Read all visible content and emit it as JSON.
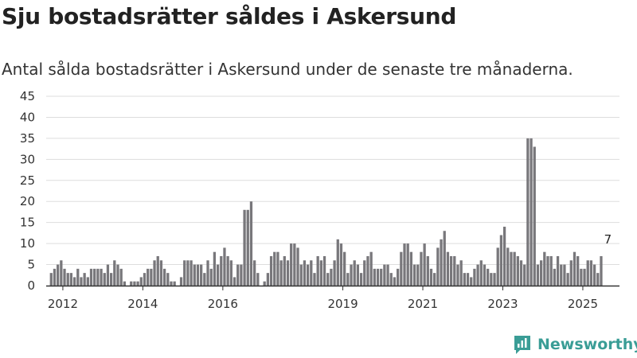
{
  "title": "Sju bostadsrätter såldes i Askersund",
  "subtitle": "Antal sålda bostadsrätter i Askersund under de senaste tre månaderna.",
  "brand": {
    "name": "Newsworthy",
    "icon": "newsworthy-logo-icon"
  },
  "colors": {
    "bar": "#78777b",
    "highlight": "#1f9e97",
    "grid": "#dddddd",
    "axis": "#333333",
    "brand": "#3a9d96"
  },
  "chart_data": {
    "type": "bar",
    "xlabel": "",
    "ylabel": "",
    "ylim": [
      0,
      45
    ],
    "y_ticks": [
      0,
      5,
      10,
      15,
      20,
      25,
      30,
      35,
      40,
      45
    ],
    "x_ticks": [
      2012,
      2014,
      2016,
      2019,
      2021,
      2023,
      2025
    ],
    "x_range": [
      "2011-09",
      "2025-12"
    ],
    "grid": true,
    "legend": "none",
    "series": [
      {
        "start": "2011-10",
        "values": [
          3,
          4,
          5,
          6,
          4,
          3,
          3,
          2,
          4,
          2,
          3,
          2,
          4,
          4,
          4,
          4,
          3,
          5,
          3,
          6,
          5,
          4,
          1,
          0,
          1,
          1,
          1,
          2,
          3,
          4,
          4,
          6,
          7,
          6,
          4,
          3,
          1,
          1,
          0,
          2,
          6,
          6,
          6,
          5,
          5,
          5,
          3,
          6,
          4,
          8,
          5,
          7,
          9,
          7,
          6,
          2,
          5,
          5,
          18,
          18,
          20,
          6,
          3,
          0,
          1,
          3,
          7,
          8,
          8,
          6,
          7,
          6,
          10,
          10,
          9,
          5,
          6,
          5,
          6,
          3,
          7,
          6,
          7,
          3,
          4,
          6,
          11,
          10,
          8,
          3,
          5,
          6,
          5,
          3,
          6,
          7,
          8,
          4,
          4,
          4,
          5,
          5,
          3,
          2,
          4,
          8,
          10,
          10,
          8,
          5,
          5,
          8,
          10,
          7,
          4,
          3,
          9,
          11,
          13,
          8,
          7,
          7,
          5,
          6,
          3,
          3,
          2,
          4,
          5,
          6,
          5,
          4,
          3,
          3,
          9,
          12,
          14,
          9,
          8,
          8,
          7,
          6,
          5,
          35,
          35,
          33,
          5,
          6,
          8,
          7,
          7,
          4,
          7,
          5,
          5,
          3,
          6,
          8,
          7,
          4,
          4,
          6,
          6,
          5,
          3,
          7
        ]
      }
    ],
    "highlight": {
      "date": "2025-09",
      "value": 7,
      "label": "7"
    }
  }
}
